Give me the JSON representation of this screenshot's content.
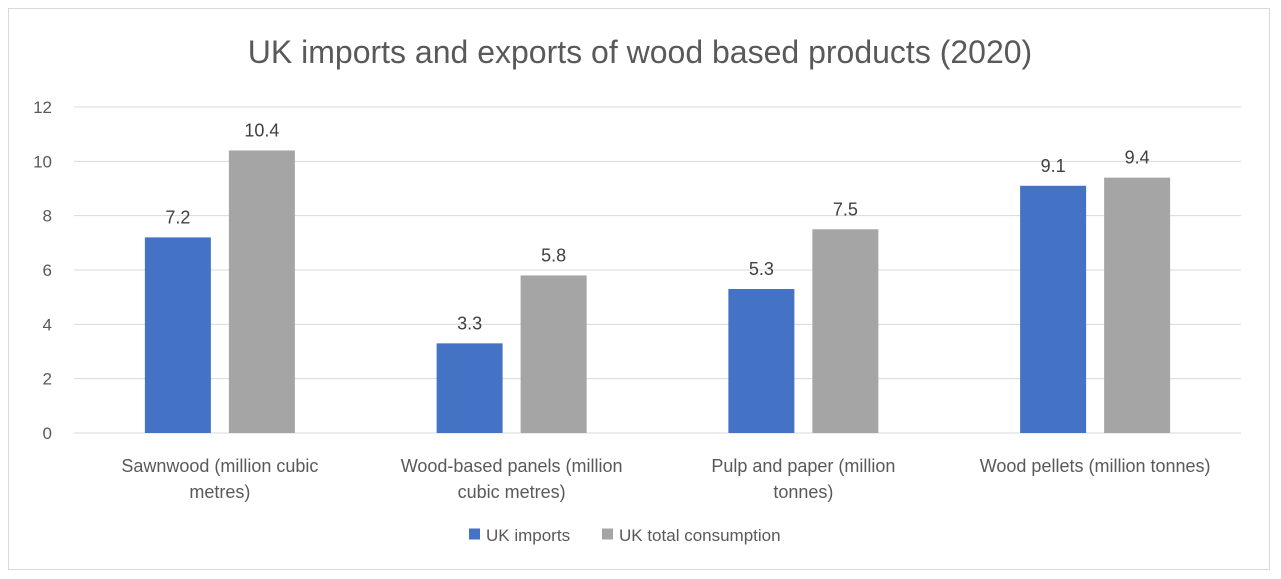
{
  "chart_data": {
    "type": "bar",
    "title": "UK imports and exports of wood based products (2020)",
    "categories": [
      [
        "Sawnwood (million cubic",
        "metres)"
      ],
      [
        "Wood-based panels (million",
        "cubic metres)"
      ],
      [
        "Pulp and paper (million",
        "tonnes)"
      ],
      [
        "Wood pellets (million tonnes)"
      ]
    ],
    "series": [
      {
        "name": "UK imports",
        "color": "#4472c4",
        "values": [
          7.2,
          3.3,
          5.3,
          9.1
        ],
        "labels": [
          "7.2",
          "3.3",
          "5.3",
          "9.1"
        ]
      },
      {
        "name": "UK total consumption",
        "color": "#a5a5a5",
        "values": [
          10.4,
          5.8,
          7.5,
          9.4
        ],
        "labels": [
          "10.4",
          "5.8",
          "7.5",
          "9.4"
        ]
      }
    ],
    "ylim": [
      0,
      12
    ],
    "yticks": [
      "0",
      "2",
      "4",
      "6",
      "8",
      "10",
      "12"
    ],
    "ytick_values": [
      0,
      2,
      4,
      6,
      8,
      10,
      12
    ],
    "grid": true,
    "legend_position": "bottom"
  }
}
